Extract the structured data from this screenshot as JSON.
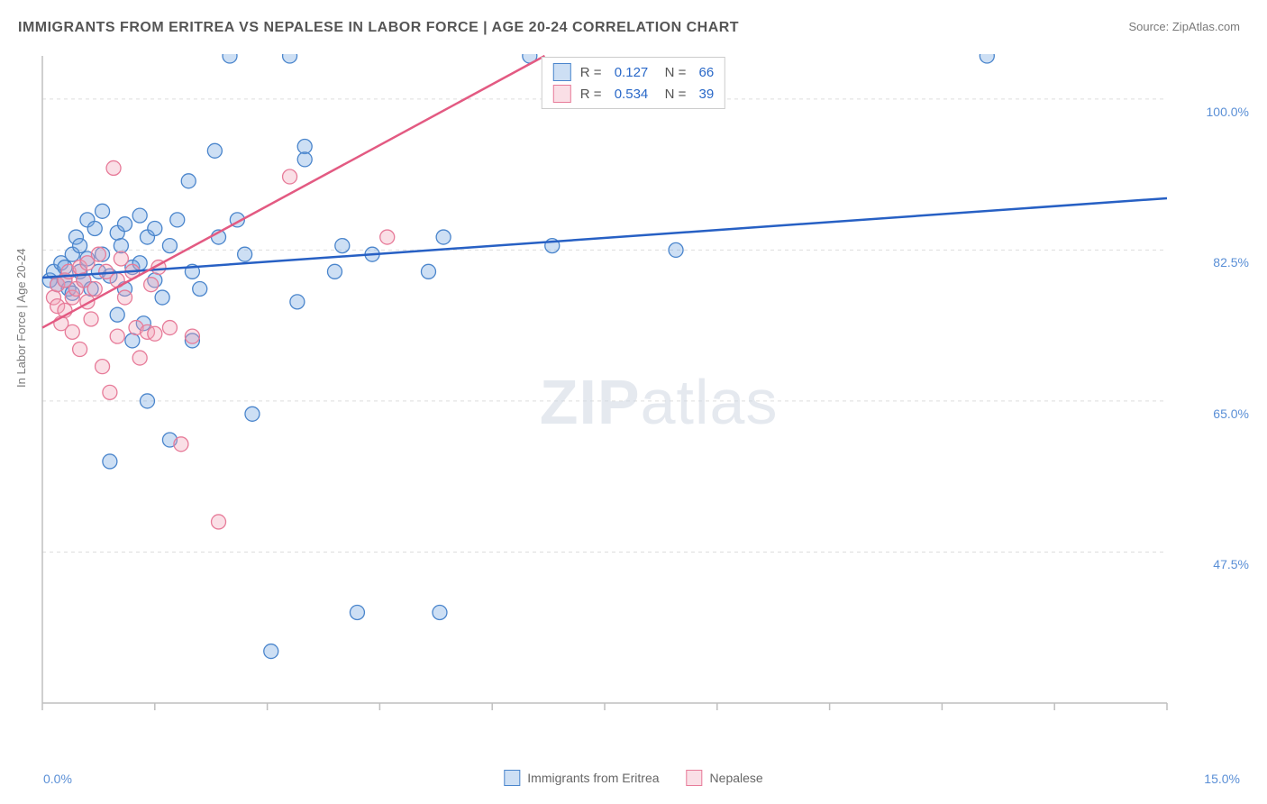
{
  "title": "IMMIGRANTS FROM ERITREA VS NEPALESE IN LABOR FORCE | AGE 20-24 CORRELATION CHART",
  "source": "Source: ZipAtlas.com",
  "watermark_a": "ZIP",
  "watermark_b": "atlas",
  "chart": {
    "type": "scatter",
    "background_color": "#ffffff",
    "grid_color": "#dddddd",
    "axis_color": "#bfbfbf",
    "y_label": "In Labor Force | Age 20-24",
    "xlim": [
      0.0,
      15.0
    ],
    "ylim": [
      30.0,
      105.0
    ],
    "y_ticks": [
      47.5,
      65.0,
      82.5,
      100.0
    ],
    "y_tick_labels": [
      "47.5%",
      "65.0%",
      "82.5%",
      "100.0%"
    ],
    "x_tick_minor_step": 1.5,
    "x_min_label": "0.0%",
    "x_max_label": "15.0%",
    "tick_fontsize": 14,
    "tick_color": "#5a8fd6",
    "label_fontsize": 13,
    "label_color": "#7a7a7a",
    "marker_radius": 8,
    "marker_opacity": 0.6,
    "series": [
      {
        "name": "Immigrants from Eritrea",
        "color": "#6fa3e0",
        "fill": "rgba(111,163,224,0.35)",
        "stroke": "#4a85cc",
        "line_color": "#2760c4",
        "line_width": 2.5,
        "trend": {
          "x1": 0.0,
          "y1": 79.3,
          "x2": 15.0,
          "y2": 88.5
        },
        "stats": {
          "R": "0.127",
          "N": "66"
        },
        "points": [
          [
            0.1,
            79
          ],
          [
            0.15,
            80
          ],
          [
            0.2,
            78.5
          ],
          [
            0.25,
            81
          ],
          [
            0.3,
            80.5
          ],
          [
            0.3,
            79
          ],
          [
            0.35,
            78
          ],
          [
            0.4,
            82
          ],
          [
            0.4,
            77.5
          ],
          [
            0.45,
            84
          ],
          [
            0.5,
            80
          ],
          [
            0.5,
            83
          ],
          [
            0.55,
            79
          ],
          [
            0.6,
            86
          ],
          [
            0.6,
            81.5
          ],
          [
            0.65,
            78
          ],
          [
            0.7,
            85
          ],
          [
            0.75,
            80
          ],
          [
            0.8,
            87
          ],
          [
            0.8,
            82
          ],
          [
            0.9,
            58
          ],
          [
            0.9,
            79.5
          ],
          [
            1.0,
            84.5
          ],
          [
            1.0,
            75
          ],
          [
            1.05,
            83
          ],
          [
            1.1,
            78
          ],
          [
            1.1,
            85.5
          ],
          [
            1.2,
            72
          ],
          [
            1.2,
            80.5
          ],
          [
            1.3,
            86.5
          ],
          [
            1.3,
            81
          ],
          [
            1.35,
            74
          ],
          [
            1.4,
            84
          ],
          [
            1.4,
            65
          ],
          [
            1.5,
            85
          ],
          [
            1.5,
            79
          ],
          [
            1.6,
            77
          ],
          [
            1.7,
            83
          ],
          [
            1.7,
            60.5
          ],
          [
            1.8,
            86
          ],
          [
            1.95,
            90.5
          ],
          [
            2.0,
            72
          ],
          [
            2.0,
            80
          ],
          [
            2.1,
            78
          ],
          [
            2.3,
            94
          ],
          [
            2.35,
            84
          ],
          [
            2.5,
            105
          ],
          [
            2.6,
            86
          ],
          [
            2.7,
            82
          ],
          [
            2.8,
            63.5
          ],
          [
            3.05,
            36
          ],
          [
            3.3,
            105
          ],
          [
            3.4,
            76.5
          ],
          [
            3.5,
            94.5
          ],
          [
            3.5,
            93
          ],
          [
            3.9,
            80
          ],
          [
            4.0,
            83
          ],
          [
            4.2,
            40.5
          ],
          [
            4.4,
            82
          ],
          [
            5.15,
            80
          ],
          [
            5.3,
            40.5
          ],
          [
            5.35,
            84
          ],
          [
            6.5,
            105
          ],
          [
            6.8,
            83
          ],
          [
            8.45,
            82.5
          ],
          [
            12.6,
            105
          ]
        ]
      },
      {
        "name": "Nepalese",
        "color": "#f2a3b8",
        "fill": "rgba(242,163,184,0.35)",
        "stroke": "#e77b99",
        "line_color": "#e35a82",
        "line_width": 2.5,
        "trend": {
          "x1": 0.0,
          "y1": 73.5,
          "x2": 6.7,
          "y2": 105.0
        },
        "stats": {
          "R": "0.534",
          "N": "39"
        },
        "points": [
          [
            0.15,
            77
          ],
          [
            0.2,
            78.5
          ],
          [
            0.2,
            76
          ],
          [
            0.25,
            74
          ],
          [
            0.3,
            79
          ],
          [
            0.3,
            75.5
          ],
          [
            0.35,
            80
          ],
          [
            0.4,
            77
          ],
          [
            0.4,
            73
          ],
          [
            0.45,
            78
          ],
          [
            0.5,
            80.5
          ],
          [
            0.5,
            71
          ],
          [
            0.55,
            79
          ],
          [
            0.6,
            76.5
          ],
          [
            0.6,
            81
          ],
          [
            0.65,
            74.5
          ],
          [
            0.7,
            78
          ],
          [
            0.75,
            82
          ],
          [
            0.8,
            69
          ],
          [
            0.85,
            80
          ],
          [
            0.9,
            66
          ],
          [
            0.95,
            92
          ],
          [
            1.0,
            79
          ],
          [
            1.0,
            72.5
          ],
          [
            1.05,
            81.5
          ],
          [
            1.1,
            77
          ],
          [
            1.2,
            80
          ],
          [
            1.25,
            73.5
          ],
          [
            1.3,
            70
          ],
          [
            1.4,
            73
          ],
          [
            1.45,
            78.5
          ],
          [
            1.5,
            72.8
          ],
          [
            1.55,
            80.5
          ],
          [
            1.7,
            73.5
          ],
          [
            1.85,
            60
          ],
          [
            2.0,
            72.5
          ],
          [
            2.35,
            51
          ],
          [
            3.3,
            91
          ],
          [
            4.6,
            84
          ]
        ]
      }
    ]
  },
  "legend": {
    "items": [
      {
        "label": "Immigrants from Eritrea",
        "fill": "rgba(111,163,224,0.35)",
        "stroke": "#4a85cc"
      },
      {
        "label": "Nepalese",
        "fill": "rgba(242,163,184,0.35)",
        "stroke": "#e77b99"
      }
    ]
  }
}
